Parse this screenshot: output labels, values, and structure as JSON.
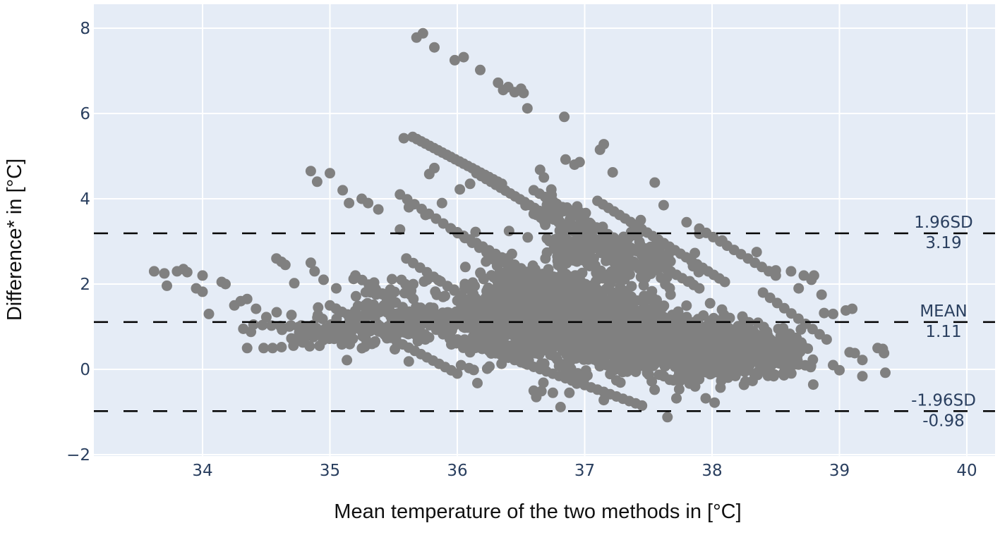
{
  "chart_data": {
    "type": "scatter",
    "title": "",
    "xlabel": "Mean temperature of the two methods in [°C]",
    "ylabel": "Difference* in [°C]",
    "xlim": [
      33.2,
      40.2
    ],
    "ylim": [
      -2.1,
      8.5
    ],
    "x_ticks": [
      34,
      35,
      36,
      37,
      38,
      39,
      40
    ],
    "y_ticks": [
      -2,
      0,
      2,
      4,
      6,
      8
    ],
    "y_tick_labels": [
      "−2",
      "0",
      "2",
      "4",
      "6",
      "8"
    ],
    "grid": true,
    "legend": null,
    "marker": {
      "color": "#808080",
      "radius_px": 7.5
    },
    "colors": {
      "plot_bg": "#e5ecf6",
      "grid": "#ffffff",
      "tick_text": "#2a3f5f",
      "ref_line": "#000000"
    },
    "reference_lines": [
      {
        "name": "upper-loa",
        "label": "1.96SD",
        "value_label": "3.19",
        "y": 3.19
      },
      {
        "name": "mean",
        "label": "MEAN",
        "value_label": "1.11",
        "y": 1.11
      },
      {
        "name": "lower-loa",
        "label": "-1.96SD",
        "value_label": "-0.98",
        "y": -0.98
      }
    ],
    "points": [
      [
        35.68,
        7.78
      ],
      [
        35.73,
        7.88
      ],
      [
        35.82,
        7.55
      ],
      [
        35.98,
        7.25
      ],
      [
        36.05,
        7.32
      ],
      [
        36.18,
        7.02
      ],
      [
        36.32,
        6.72
      ],
      [
        36.36,
        6.55
      ],
      [
        36.4,
        6.62
      ],
      [
        36.45,
        6.5
      ],
      [
        36.5,
        6.58
      ],
      [
        36.52,
        6.48
      ],
      [
        36.55,
        6.12
      ],
      [
        36.84,
        5.92
      ],
      [
        37.12,
        5.15
      ],
      [
        37.15,
        5.28
      ],
      [
        36.85,
        4.92
      ],
      [
        36.92,
        4.8
      ],
      [
        36.96,
        4.86
      ],
      [
        37.22,
        4.62
      ],
      [
        37.55,
        4.38
      ],
      [
        36.65,
        4.68
      ],
      [
        36.68,
        4.5
      ],
      [
        35.58,
        5.42
      ],
      [
        35.78,
        4.58
      ],
      [
        35.82,
        4.72
      ],
      [
        35.75,
        3.62
      ],
      [
        35.62,
        3.8
      ],
      [
        36.02,
        4.22
      ],
      [
        36.1,
        4.35
      ],
      [
        35.88,
        3.9
      ],
      [
        34.85,
        4.65
      ],
      [
        35.0,
        4.6
      ],
      [
        34.9,
        4.4
      ],
      [
        35.25,
        4.0
      ],
      [
        35.55,
        3.28
      ],
      [
        35.1,
        4.2
      ],
      [
        35.15,
        3.9
      ],
      [
        35.3,
        3.9
      ],
      [
        35.38,
        3.75
      ],
      [
        33.62,
        2.3
      ],
      [
        33.7,
        2.25
      ],
      [
        33.72,
        1.96
      ],
      [
        33.8,
        2.3
      ],
      [
        33.85,
        2.35
      ],
      [
        33.88,
        2.28
      ],
      [
        34.0,
        2.2
      ],
      [
        33.95,
        1.9
      ],
      [
        34.0,
        1.82
      ],
      [
        34.05,
        1.3
      ],
      [
        34.15,
        2.05
      ],
      [
        34.18,
        2.0
      ],
      [
        34.25,
        1.5
      ],
      [
        34.3,
        1.6
      ],
      [
        34.35,
        1.65
      ],
      [
        34.32,
        0.95
      ],
      [
        34.38,
        0.88
      ],
      [
        34.35,
        0.5
      ],
      [
        34.48,
        0.5
      ],
      [
        34.55,
        0.5
      ],
      [
        34.62,
        0.52
      ],
      [
        34.42,
        1.42
      ],
      [
        34.58,
        2.6
      ],
      [
        34.62,
        2.52
      ],
      [
        34.65,
        2.45
      ],
      [
        34.72,
        2.02
      ],
      [
        34.85,
        2.5
      ],
      [
        34.88,
        2.3
      ],
      [
        34.95,
        2.1
      ],
      [
        35.05,
        1.9
      ],
      [
        38.62,
        2.3
      ],
      [
        38.68,
        1.9
      ],
      [
        38.72,
        2.2
      ],
      [
        38.78,
        2.1
      ],
      [
        38.8,
        2.2
      ],
      [
        38.86,
        1.75
      ],
      [
        38.88,
        1.32
      ],
      [
        38.95,
        1.3
      ],
      [
        39.05,
        1.38
      ],
      [
        39.1,
        1.42
      ],
      [
        39.08,
        0.4
      ],
      [
        39.12,
        0.38
      ],
      [
        39.18,
        0.22
      ],
      [
        39.18,
        -0.16
      ],
      [
        39.3,
        0.5
      ],
      [
        39.34,
        0.48
      ],
      [
        39.35,
        0.38
      ],
      [
        39.36,
        -0.08
      ],
      [
        39.0,
        -0.02
      ],
      [
        38.95,
        0.1
      ],
      [
        37.65,
        -1.12
      ],
      [
        37.95,
        -0.68
      ],
      [
        38.02,
        -0.78
      ],
      [
        37.72,
        -0.68
      ],
      [
        37.15,
        -0.72
      ],
      [
        36.88,
        -0.55
      ],
      [
        36.75,
        -0.55
      ],
      [
        36.62,
        -0.65
      ],
      [
        36.6,
        -0.5
      ],
      [
        38.08,
        3.02
      ],
      [
        37.62,
        3.85
      ],
      [
        37.8,
        3.45
      ],
      [
        37.9,
        3.18
      ],
      [
        38.35,
        2.75
      ],
      [
        38.5,
        2.32
      ],
      [
        37.44,
        3.5
      ]
    ],
    "streaks": [
      {
        "from": [
          35.65,
          5.45
        ],
        "to": [
          36.35,
          4.35
        ],
        "count": 22
      },
      {
        "from": [
          36.15,
          4.6
        ],
        "to": [
          37.1,
          2.9
        ],
        "count": 26
      },
      {
        "from": [
          35.55,
          4.1
        ],
        "to": [
          36.4,
          2.4
        ],
        "count": 16
      },
      {
        "from": [
          35.95,
          3.3
        ],
        "to": [
          36.6,
          2.2
        ],
        "count": 14
      },
      {
        "from": [
          36.6,
          4.2
        ],
        "to": [
          37.9,
          1.9
        ],
        "count": 30
      },
      {
        "from": [
          37.1,
          3.95
        ],
        "to": [
          38.1,
          2.05
        ],
        "count": 24
      },
      {
        "from": [
          36.0,
          0.7
        ],
        "to": [
          37.45,
          -0.85
        ],
        "count": 30
      },
      {
        "from": [
          35.0,
          1.5
        ],
        "to": [
          36.0,
          -0.1
        ],
        "count": 22
      },
      {
        "from": [
          34.4,
          1.05
        ],
        "to": [
          35.6,
          0.85
        ],
        "count": 18
      },
      {
        "from": [
          35.2,
          2.2
        ],
        "to": [
          36.1,
          0.4
        ],
        "count": 18
      },
      {
        "from": [
          36.3,
          1.2
        ],
        "to": [
          37.0,
          -0.2
        ],
        "count": 14
      },
      {
        "from": [
          35.6,
          2.6
        ],
        "to": [
          36.3,
          1.2
        ],
        "count": 14
      },
      {
        "from": [
          37.9,
          3.3
        ],
        "to": [
          38.5,
          2.2
        ],
        "count": 12
      },
      {
        "from": [
          38.4,
          1.8
        ],
        "to": [
          38.9,
          0.7
        ],
        "count": 10
      }
    ],
    "clusters": [
      {
        "center": [
          37.0,
          1.1
        ],
        "spread": [
          0.55,
          0.85
        ],
        "count": 900
      },
      {
        "center": [
          37.7,
          0.6
        ],
        "spread": [
          0.55,
          0.6
        ],
        "count": 700
      },
      {
        "center": [
          38.2,
          0.5
        ],
        "spread": [
          0.35,
          0.5
        ],
        "count": 300
      },
      {
        "center": [
          36.5,
          1.6
        ],
        "spread": [
          0.3,
          0.7
        ],
        "count": 250
      },
      {
        "center": [
          36.2,
          1.0
        ],
        "spread": [
          0.35,
          0.75
        ],
        "count": 200
      },
      {
        "center": [
          35.6,
          1.3
        ],
        "spread": [
          0.35,
          0.6
        ],
        "count": 140
      },
      {
        "center": [
          35.0,
          0.9
        ],
        "spread": [
          0.35,
          0.35
        ],
        "count": 80
      },
      {
        "center": [
          37.2,
          2.7
        ],
        "spread": [
          0.45,
          0.5
        ],
        "count": 220
      },
      {
        "center": [
          38.6,
          0.4
        ],
        "spread": [
          0.2,
          0.35
        ],
        "count": 60
      },
      {
        "center": [
          36.8,
          3.6
        ],
        "spread": [
          0.25,
          0.3
        ],
        "count": 40
      }
    ]
  }
}
